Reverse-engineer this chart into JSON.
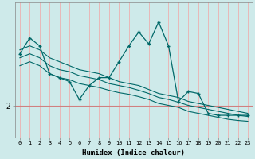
{
  "xlabel": "Humidex (Indice chaleur)",
  "bg_color": "#ceeaea",
  "vgrid_color": "#e8b8b8",
  "hgrid_color": "#d08080",
  "line_color": "#006868",
  "x_values": [
    0,
    1,
    2,
    3,
    4,
    5,
    6,
    7,
    8,
    9,
    10,
    11,
    12,
    13,
    14,
    15,
    16,
    17,
    18,
    19,
    20,
    21,
    22,
    23
  ],
  "ytick_label": "-2",
  "ytick_value": -2.0,
  "line1_y": [
    -0.6,
    -0.5,
    -0.6,
    -0.8,
    -0.9,
    -1.0,
    -1.1,
    -1.15,
    -1.2,
    -1.3,
    -1.4,
    -1.45,
    -1.5,
    -1.6,
    -1.7,
    -1.75,
    -1.8,
    -1.9,
    -1.95,
    -2.0,
    -2.05,
    -2.1,
    -2.15,
    -2.2
  ],
  "line2_y": [
    -0.8,
    -0.7,
    -0.8,
    -1.0,
    -1.1,
    -1.15,
    -1.25,
    -1.3,
    -1.35,
    -1.45,
    -1.5,
    -1.55,
    -1.62,
    -1.7,
    -1.8,
    -1.85,
    -1.92,
    -2.0,
    -2.05,
    -2.1,
    -2.15,
    -2.2,
    -2.25,
    -2.28
  ],
  "line3_y": [
    -1.0,
    -0.9,
    -1.0,
    -1.2,
    -1.3,
    -1.35,
    -1.45,
    -1.5,
    -1.55,
    -1.62,
    -1.68,
    -1.72,
    -1.78,
    -1.85,
    -1.95,
    -2.0,
    -2.05,
    -2.15,
    -2.2,
    -2.25,
    -2.3,
    -2.35,
    -2.38,
    -2.4
  ],
  "main_line_y": [
    -0.7,
    -0.3,
    -0.5,
    -1.2,
    -1.3,
    -1.4,
    -1.85,
    -1.5,
    -1.3,
    -1.3,
    -0.9,
    -0.5,
    -0.15,
    -0.45,
    0.1,
    -0.5,
    -1.9,
    -1.65,
    -1.7,
    -2.2,
    -2.25,
    -2.25,
    -2.25,
    -2.25
  ],
  "ylim": [
    -2.8,
    0.6
  ],
  "xlim": [
    -0.5,
    23.5
  ]
}
